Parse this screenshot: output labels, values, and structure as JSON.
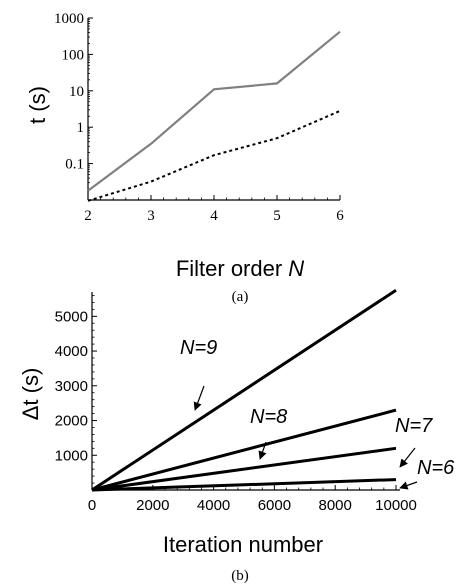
{
  "chart_data": [
    {
      "type": "line",
      "ylabel": "t (s)",
      "xlabel_text": "Filter order ",
      "xlabel_var": "N",
      "caption": "(a)",
      "x": [
        2,
        3,
        4,
        5,
        6
      ],
      "xlim": [
        2,
        6
      ],
      "ylim": [
        0.01,
        1000
      ],
      "yscale": "log",
      "xticks": [
        "2",
        "3",
        "4",
        "5",
        "6"
      ],
      "yticks": [
        {
          "value": 0.1,
          "label": "0.1"
        },
        {
          "value": 1,
          "label": "1"
        },
        {
          "value": 10,
          "label": "10"
        },
        {
          "value": 100,
          "label": "100"
        },
        {
          "value": 1000,
          "label": "1000"
        }
      ],
      "series": [
        {
          "values": [
            0.018,
            0.35,
            11,
            16,
            420
          ],
          "style": "solid",
          "color": "#808080"
        },
        {
          "values": [
            0.0095,
            0.032,
            0.17,
            0.5,
            2.8
          ],
          "style": "dashed",
          "color": "#000000"
        }
      ]
    },
    {
      "type": "line",
      "ylabel": "Δt (s)",
      "xlabel": "Iteration number",
      "caption": "(b)",
      "xlim": [
        0,
        10000
      ],
      "ylim": [
        0,
        5700
      ],
      "xticks": [
        {
          "value": 0,
          "label": "0"
        },
        {
          "value": 2000,
          "label": "2000"
        },
        {
          "value": 4000,
          "label": "4000"
        },
        {
          "value": 6000,
          "label": "6000"
        },
        {
          "value": 8000,
          "label": "8000"
        },
        {
          "value": 10000,
          "label": "10000"
        }
      ],
      "yticks": [
        {
          "value": 1000,
          "label": "1000"
        },
        {
          "value": 2000,
          "label": "2000"
        },
        {
          "value": 3000,
          "label": "3000"
        },
        {
          "value": 4000,
          "label": "4000"
        },
        {
          "value": 5000,
          "label": "5000"
        }
      ],
      "series": [
        {
          "name": "N=9",
          "x": [
            0,
            10000
          ],
          "values": [
            0,
            5750
          ]
        },
        {
          "name": "N=8",
          "x": [
            0,
            10000
          ],
          "values": [
            0,
            2300
          ]
        },
        {
          "name": "N=7",
          "x": [
            0,
            10000
          ],
          "values": [
            0,
            1200
          ]
        },
        {
          "name": "N=6",
          "x": [
            0,
            10000
          ],
          "values": [
            0,
            300
          ]
        }
      ],
      "annotations": [
        {
          "text": "N=9",
          "target_series": "N=9"
        },
        {
          "text": "N=8",
          "target_series": "N=8"
        },
        {
          "text": "N=7",
          "target_series": "N=7"
        },
        {
          "text": "N=6",
          "target_series": "N=6"
        }
      ]
    }
  ]
}
